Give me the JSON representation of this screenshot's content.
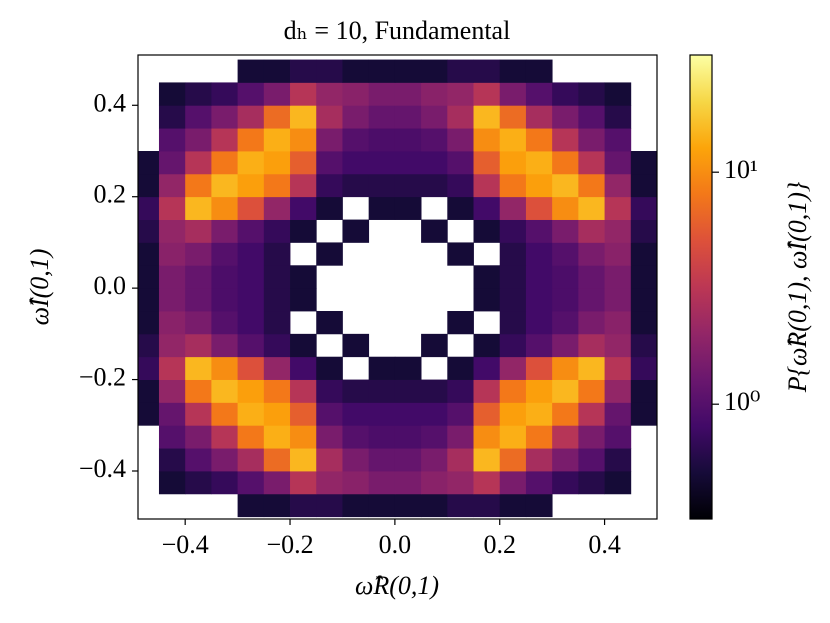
{
  "chart_data": {
    "type": "hist2d",
    "title": "dₕ = 10, Fundamental",
    "xlabel": "ω̂R(0,1)",
    "ylabel": "ω̂I(0,1)",
    "colorbar_label": "P{ω̂R(0,1), ω̂I(0,1)}",
    "colormap": "inferno",
    "color_scale": "log",
    "xlim": [
      -0.49,
      0.5
    ],
    "ylim": [
      -0.505,
      0.51
    ],
    "xticks": [
      {
        "value": -0.4,
        "label": "−0.4"
      },
      {
        "value": -0.2,
        "label": "−0.2"
      },
      {
        "value": 0,
        "label": "0.0"
      },
      0.2,
      0.4
    ],
    "yticks": [
      {
        "value": -0.4,
        "label": "−0.4"
      },
      {
        "value": -0.2,
        "label": "−0.2"
      },
      {
        "value": 0,
        "label": "0.0"
      },
      0.2,
      0.4
    ],
    "clim": [
      0.32,
      32
    ],
    "cticks": [
      {
        "value": 1,
        "label": "10⁰"
      },
      {
        "value": 10,
        "label": "10¹"
      }
    ],
    "xbins": [
      -0.5,
      -0.45,
      -0.4,
      -0.35,
      -0.3,
      -0.25,
      -0.2,
      -0.15,
      -0.1,
      -0.05,
      0,
      0.05,
      0.1,
      0.15,
      0.2,
      0.25,
      0.3,
      0.35,
      0.4,
      0.45,
      0.5
    ],
    "ybins": [
      -0.5,
      -0.45,
      -0.4,
      -0.35,
      -0.3,
      -0.25,
      -0.2,
      -0.15,
      -0.1,
      -0.05,
      0,
      0.05,
      0.1,
      0.15,
      0.2,
      0.25,
      0.3,
      0.35,
      0.4,
      0.45,
      0.5
    ],
    "z": [
      [
        null,
        null,
        null,
        null,
        0.5,
        0.5,
        0.6,
        0.6,
        0.5,
        0.5,
        0.5,
        0.5,
        0.6,
        0.6,
        0.5,
        0.5,
        null,
        null,
        null,
        null
      ],
      [
        null,
        0.5,
        0.6,
        0.7,
        1,
        1.5,
        3,
        2,
        1.8,
        1.5,
        1.5,
        1.8,
        2,
        3,
        1.5,
        1,
        0.7,
        0.6,
        0.5,
        null
      ],
      [
        null,
        0.6,
        1,
        1.5,
        2.5,
        7,
        15,
        2.5,
        1.5,
        1.2,
        1.2,
        1.5,
        2.5,
        15,
        7,
        2.5,
        1.5,
        1,
        0.6,
        null
      ],
      [
        null,
        1,
        1.5,
        3,
        8,
        14,
        10,
        1.5,
        1,
        0.9,
        0.9,
        1,
        1.5,
        10,
        14,
        8,
        3,
        1.5,
        1,
        null
      ],
      [
        0.5,
        1.2,
        3,
        8,
        14,
        12,
        6,
        1,
        0.8,
        0.8,
        0.8,
        0.8,
        1,
        6,
        12,
        14,
        8,
        3,
        1.2,
        0.5
      ],
      [
        0.5,
        2,
        8,
        15,
        12,
        8,
        3,
        0.7,
        0.6,
        0.6,
        0.6,
        0.6,
        0.7,
        3,
        8,
        12,
        15,
        8,
        2,
        0.5
      ],
      [
        0.7,
        3,
        15,
        10,
        5,
        2,
        0.8,
        0.5,
        null,
        0.5,
        0.5,
        null,
        0.5,
        0.8,
        2,
        5,
        10,
        15,
        3,
        0.7
      ],
      [
        0.6,
        2.0,
        2.5,
        1.5,
        1.0,
        0.7,
        0.5,
        null,
        0.5,
        null,
        null,
        0.5,
        null,
        0.5,
        0.7,
        1.0,
        1.5,
        2.5,
        2.0,
        0.6
      ],
      [
        0.5,
        1.8,
        1.5,
        1.0,
        0.8,
        0.6,
        null,
        0.5,
        null,
        null,
        null,
        null,
        0.5,
        null,
        0.6,
        0.8,
        1.0,
        1.5,
        1.8,
        0.5
      ],
      [
        0.5,
        1.5,
        1.2,
        0.9,
        0.8,
        0.6,
        0.5,
        null,
        null,
        null,
        null,
        null,
        null,
        0.5,
        0.6,
        0.8,
        0.9,
        1.2,
        1.5,
        0.5
      ],
      [
        0.5,
        1.5,
        1.2,
        0.9,
        0.8,
        0.6,
        0.5,
        null,
        null,
        null,
        null,
        null,
        null,
        0.5,
        0.6,
        0.8,
        0.9,
        1.2,
        1.5,
        0.5
      ],
      [
        0.5,
        1.8,
        1.5,
        1.0,
        0.8,
        0.6,
        null,
        0.5,
        null,
        null,
        null,
        null,
        0.5,
        null,
        0.6,
        0.8,
        1.0,
        1.5,
        1.8,
        0.5
      ],
      [
        0.6,
        2.0,
        2.5,
        1.5,
        1.0,
        0.7,
        0.5,
        null,
        0.5,
        null,
        null,
        0.5,
        null,
        0.5,
        0.7,
        1.0,
        1.5,
        2.5,
        2.0,
        0.6
      ],
      [
        0.7,
        3,
        15,
        10,
        5,
        2,
        0.8,
        0.5,
        null,
        0.5,
        0.5,
        null,
        0.5,
        0.8,
        2,
        5,
        10,
        15,
        3,
        0.7
      ],
      [
        0.5,
        2,
        8,
        15,
        12,
        8,
        3,
        0.7,
        0.6,
        0.6,
        0.6,
        0.6,
        0.7,
        3,
        8,
        12,
        15,
        8,
        2,
        0.5
      ],
      [
        0.5,
        1.2,
        3,
        8,
        14,
        12,
        6,
        1,
        0.8,
        0.8,
        0.8,
        0.8,
        1,
        6,
        12,
        14,
        8,
        3,
        1.2,
        0.5
      ],
      [
        null,
        1,
        1.5,
        3,
        8,
        14,
        10,
        1.5,
        1,
        0.9,
        0.9,
        1,
        1.5,
        10,
        14,
        8,
        3,
        1.5,
        1,
        null
      ],
      [
        null,
        0.6,
        1,
        1.5,
        2.5,
        7,
        15,
        2.5,
        1.5,
        1.2,
        1.2,
        1.5,
        2.5,
        15,
        7,
        2.5,
        1.5,
        1,
        0.6,
        null
      ],
      [
        null,
        0.5,
        0.6,
        0.7,
        1,
        1.5,
        3,
        2,
        1.8,
        1.5,
        1.5,
        1.8,
        2,
        3,
        1.5,
        1,
        0.7,
        0.6,
        0.5,
        null
      ],
      [
        null,
        null,
        null,
        null,
        0.5,
        0.5,
        0.6,
        0.6,
        0.5,
        0.5,
        0.5,
        0.5,
        0.6,
        0.6,
        0.5,
        0.5,
        null,
        null,
        null,
        null
      ]
    ]
  }
}
